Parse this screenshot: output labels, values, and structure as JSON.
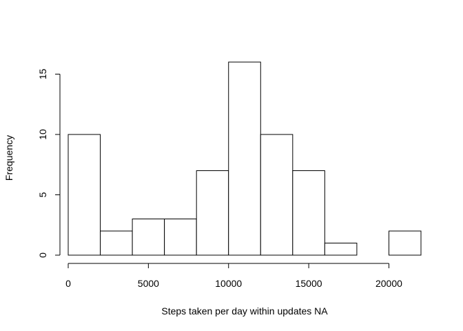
{
  "chart_data": {
    "type": "bar",
    "title": "",
    "xlabel": "Steps taken per day within updates NA",
    "ylabel": "Frequency",
    "bins": [
      {
        "x0": 0,
        "x1": 2000,
        "count": 10
      },
      {
        "x0": 2000,
        "x1": 4000,
        "count": 2
      },
      {
        "x0": 4000,
        "x1": 6000,
        "count": 3
      },
      {
        "x0": 6000,
        "x1": 8000,
        "count": 3
      },
      {
        "x0": 8000,
        "x1": 10000,
        "count": 7
      },
      {
        "x0": 10000,
        "x1": 12000,
        "count": 16
      },
      {
        "x0": 12000,
        "x1": 14000,
        "count": 10
      },
      {
        "x0": 14000,
        "x1": 16000,
        "count": 7
      },
      {
        "x0": 16000,
        "x1": 18000,
        "count": 1
      },
      {
        "x0": 18000,
        "x1": 20000,
        "count": 0
      },
      {
        "x0": 20000,
        "x1": 22000,
        "count": 2
      }
    ],
    "xlim": [
      0,
      22000
    ],
    "ylim": [
      0,
      16
    ],
    "xticks": [
      0,
      5000,
      10000,
      15000,
      20000
    ],
    "yticks": [
      0,
      5,
      10,
      15
    ],
    "grid": false
  }
}
